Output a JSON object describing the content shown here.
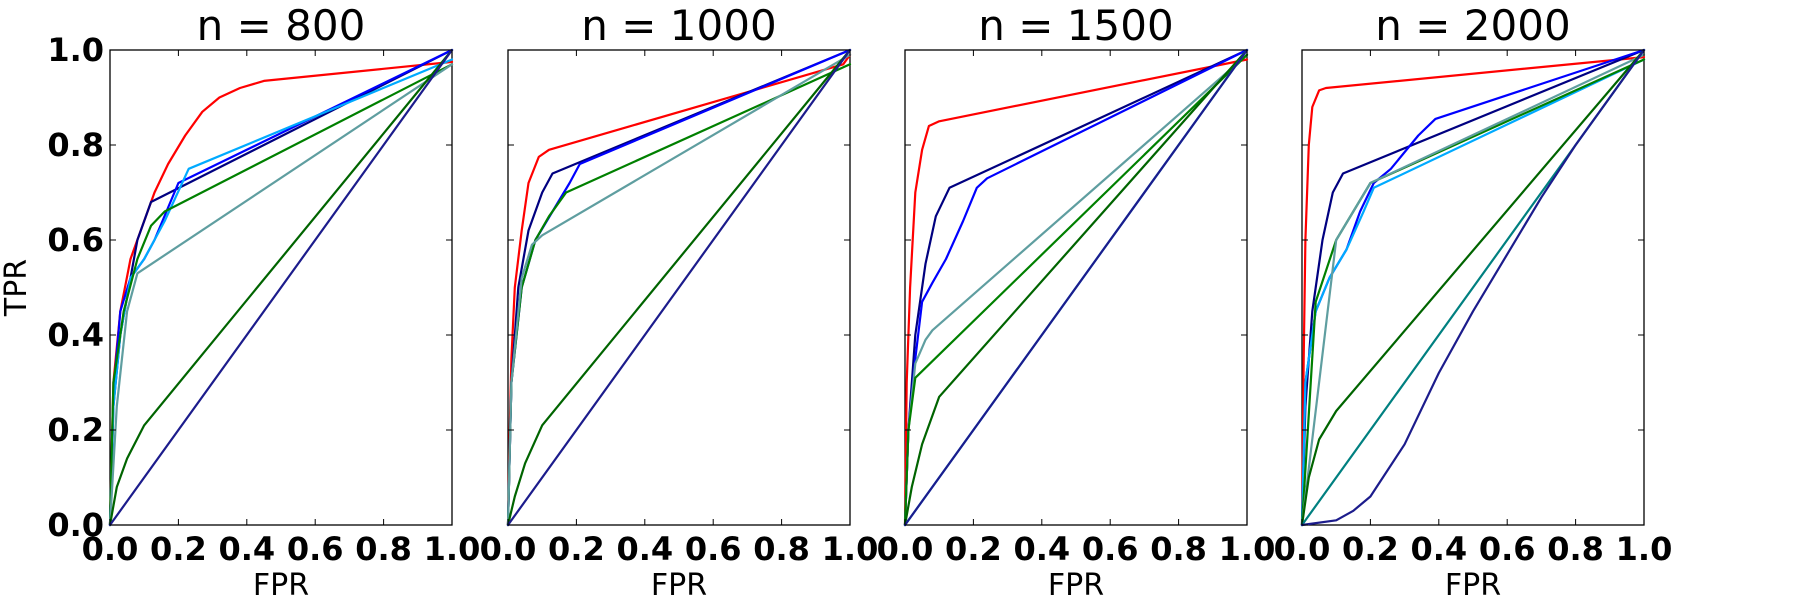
{
  "chart_data": [
    {
      "type": "line",
      "title": "n = 800",
      "xlabel": "FPR",
      "ylabel": "TPR",
      "xlim": [
        0,
        1
      ],
      "ylim": [
        0,
        1
      ],
      "xticks": [
        "0.0",
        "0.2",
        "0.4",
        "0.6",
        "0.8",
        "1.0"
      ],
      "yticks": [
        "0.0",
        "0.2",
        "0.4",
        "0.6",
        "0.8",
        "1.0"
      ],
      "grid": false,
      "series": [
        {
          "color": "#ff0000",
          "points": [
            [
              0,
              0
            ],
            [
              0.01,
              0.3
            ],
            [
              0.03,
              0.45
            ],
            [
              0.06,
              0.56
            ],
            [
              0.1,
              0.64
            ],
            [
              0.13,
              0.7
            ],
            [
              0.17,
              0.76
            ],
            [
              0.22,
              0.82
            ],
            [
              0.27,
              0.87
            ],
            [
              0.32,
              0.9
            ],
            [
              0.38,
              0.92
            ],
            [
              0.45,
              0.935
            ],
            [
              1,
              0.975
            ]
          ]
        },
        {
          "color": "#000080",
          "points": [
            [
              0,
              0
            ],
            [
              0.01,
              0.25
            ],
            [
              0.03,
              0.4
            ],
            [
              0.06,
              0.52
            ],
            [
              0.08,
              0.6
            ],
            [
              0.12,
              0.68
            ],
            [
              1,
              1
            ]
          ]
        },
        {
          "color": "#0000ff",
          "points": [
            [
              0,
              0
            ],
            [
              0.01,
              0.28
            ],
            [
              0.03,
              0.45
            ],
            [
              0.06,
              0.52
            ],
            [
              0.1,
              0.56
            ],
            [
              0.13,
              0.6
            ],
            [
              0.2,
              0.72
            ],
            [
              1,
              1
            ]
          ]
        },
        {
          "color": "#00aaff",
          "points": [
            [
              0,
              0
            ],
            [
              0.01,
              0.25
            ],
            [
              0.03,
              0.4
            ],
            [
              0.06,
              0.52
            ],
            [
              0.1,
              0.56
            ],
            [
              0.16,
              0.64
            ],
            [
              0.23,
              0.75
            ],
            [
              1,
              0.98
            ]
          ]
        },
        {
          "color": "#008000",
          "points": [
            [
              0,
              0
            ],
            [
              0.01,
              0.3
            ],
            [
              0.04,
              0.45
            ],
            [
              0.08,
              0.56
            ],
            [
              0.12,
              0.63
            ],
            [
              0.16,
              0.66
            ],
            [
              1,
              0.97
            ]
          ]
        },
        {
          "color": "#5f9ea0",
          "points": [
            [
              0,
              0
            ],
            [
              0.02,
              0.25
            ],
            [
              0.05,
              0.45
            ],
            [
              0.08,
              0.53
            ],
            [
              1,
              0.97
            ]
          ]
        },
        {
          "color": "#006400",
          "points": [
            [
              0,
              0
            ],
            [
              0.02,
              0.08
            ],
            [
              0.05,
              0.14
            ],
            [
              0.1,
              0.21
            ],
            [
              1,
              1
            ]
          ]
        },
        {
          "color": "#1c1c8c",
          "points": [
            [
              0,
              0
            ],
            [
              1,
              1
            ]
          ]
        }
      ]
    },
    {
      "type": "line",
      "title": "n = 1000",
      "xlabel": "FPR",
      "ylabel": "",
      "xlim": [
        0,
        1
      ],
      "ylim": [
        0,
        1
      ],
      "xticks": [
        "0.0",
        "0.2",
        "0.4",
        "0.6",
        "0.8",
        "1.0"
      ],
      "yticks": [],
      "grid": false,
      "series": [
        {
          "color": "#ff0000",
          "points": [
            [
              0,
              0
            ],
            [
              0.005,
              0.2
            ],
            [
              0.01,
              0.35
            ],
            [
              0.02,
              0.5
            ],
            [
              0.04,
              0.62
            ],
            [
              0.06,
              0.72
            ],
            [
              0.09,
              0.775
            ],
            [
              0.12,
              0.79
            ],
            [
              0.98,
              0.97
            ],
            [
              1,
              0.99
            ]
          ]
        },
        {
          "color": "#000080",
          "points": [
            [
              0,
              0
            ],
            [
              0.01,
              0.3
            ],
            [
              0.03,
              0.5
            ],
            [
              0.06,
              0.62
            ],
            [
              0.1,
              0.7
            ],
            [
              0.13,
              0.74
            ],
            [
              1,
              1
            ]
          ]
        },
        {
          "color": "#0000ff",
          "points": [
            [
              0,
              0
            ],
            [
              0.01,
              0.3
            ],
            [
              0.04,
              0.5
            ],
            [
              0.08,
              0.6
            ],
            [
              0.13,
              0.66
            ],
            [
              0.18,
              0.72
            ],
            [
              0.21,
              0.76
            ],
            [
              1,
              1
            ]
          ]
        },
        {
          "color": "#008000",
          "points": [
            [
              0,
              0
            ],
            [
              0.01,
              0.3
            ],
            [
              0.04,
              0.5
            ],
            [
              0.08,
              0.6
            ],
            [
              0.12,
              0.65
            ],
            [
              0.17,
              0.7
            ],
            [
              1,
              0.97
            ]
          ]
        },
        {
          "color": "#5f9ea0",
          "points": [
            [
              0,
              0
            ],
            [
              0.01,
              0.3
            ],
            [
              0.04,
              0.52
            ],
            [
              0.07,
              0.59
            ],
            [
              0.1,
              0.61
            ],
            [
              1,
              0.99
            ]
          ]
        },
        {
          "color": "#006400",
          "points": [
            [
              0,
              0
            ],
            [
              0.02,
              0.06
            ],
            [
              0.05,
              0.13
            ],
            [
              0.1,
              0.21
            ],
            [
              1,
              1
            ]
          ]
        },
        {
          "color": "#1c1c8c",
          "points": [
            [
              0,
              0
            ],
            [
              1,
              1
            ]
          ]
        }
      ]
    },
    {
      "type": "line",
      "title": "n = 1500",
      "xlabel": "FPR",
      "ylabel": "",
      "xlim": [
        0,
        1
      ],
      "ylim": [
        0,
        1
      ],
      "xticks": [
        "0.0",
        "0.2",
        "0.4",
        "0.6",
        "0.8",
        "1.0"
      ],
      "yticks": [],
      "grid": false,
      "series": [
        {
          "color": "#ff0000",
          "points": [
            [
              0,
              0
            ],
            [
              0.005,
              0.3
            ],
            [
              0.015,
              0.5
            ],
            [
              0.03,
              0.7
            ],
            [
              0.05,
              0.79
            ],
            [
              0.07,
              0.84
            ],
            [
              0.1,
              0.85
            ],
            [
              1,
              0.98
            ]
          ]
        },
        {
          "color": "#000080",
          "points": [
            [
              0,
              0
            ],
            [
              0.01,
              0.2
            ],
            [
              0.03,
              0.4
            ],
            [
              0.06,
              0.55
            ],
            [
              0.09,
              0.65
            ],
            [
              0.13,
              0.71
            ],
            [
              1,
              1
            ]
          ]
        },
        {
          "color": "#0000ff",
          "points": [
            [
              0,
              0
            ],
            [
              0.01,
              0.2
            ],
            [
              0.03,
              0.35
            ],
            [
              0.05,
              0.47
            ],
            [
              0.08,
              0.51
            ],
            [
              0.12,
              0.56
            ],
            [
              0.17,
              0.64
            ],
            [
              0.21,
              0.71
            ],
            [
              0.24,
              0.73
            ],
            [
              1,
              1
            ]
          ]
        },
        {
          "color": "#5f9ea0",
          "points": [
            [
              0,
              0
            ],
            [
              0.01,
              0.2
            ],
            [
              0.03,
              0.34
            ],
            [
              0.06,
              0.39
            ],
            [
              0.08,
              0.41
            ],
            [
              1,
              0.99
            ]
          ]
        },
        {
          "color": "#008000",
          "points": [
            [
              0,
              0
            ],
            [
              0.01,
              0.2
            ],
            [
              0.03,
              0.31
            ],
            [
              1,
              0.99
            ]
          ]
        },
        {
          "color": "#006400",
          "points": [
            [
              0,
              0
            ],
            [
              0.02,
              0.08
            ],
            [
              0.05,
              0.17
            ],
            [
              0.1,
              0.27
            ],
            [
              1,
              1
            ]
          ]
        },
        {
          "color": "#00aaff",
          "points": [
            [
              0,
              0
            ],
            [
              1,
              1
            ]
          ]
        },
        {
          "color": "#1c1c8c",
          "points": [
            [
              0,
              0
            ],
            [
              1,
              1
            ]
          ]
        }
      ]
    },
    {
      "type": "line",
      "title": "n = 2000",
      "xlabel": "FPR",
      "ylabel": "",
      "xlim": [
        0,
        1
      ],
      "ylim": [
        0,
        1
      ],
      "xticks": [
        "0.0",
        "0.2",
        "0.4",
        "0.6",
        "0.8",
        "1.0"
      ],
      "yticks": [],
      "grid": false,
      "series": [
        {
          "color": "#ff0000",
          "points": [
            [
              0,
              0
            ],
            [
              0.005,
              0.35
            ],
            [
              0.01,
              0.6
            ],
            [
              0.02,
              0.8
            ],
            [
              0.03,
              0.88
            ],
            [
              0.05,
              0.915
            ],
            [
              0.07,
              0.92
            ],
            [
              1,
              0.985
            ]
          ]
        },
        {
          "color": "#000080",
          "points": [
            [
              0,
              0
            ],
            [
              0.01,
              0.25
            ],
            [
              0.03,
              0.45
            ],
            [
              0.06,
              0.6
            ],
            [
              0.09,
              0.7
            ],
            [
              0.12,
              0.74
            ],
            [
              1,
              1
            ]
          ]
        },
        {
          "color": "#0000ff",
          "points": [
            [
              0,
              0
            ],
            [
              0.01,
              0.3
            ],
            [
              0.04,
              0.45
            ],
            [
              0.08,
              0.52
            ],
            [
              0.13,
              0.58
            ],
            [
              0.17,
              0.66
            ],
            [
              0.21,
              0.72
            ],
            [
              0.26,
              0.75
            ],
            [
              0.34,
              0.82
            ],
            [
              0.39,
              0.855
            ],
            [
              1,
              1
            ]
          ]
        },
        {
          "color": "#00aaff",
          "points": [
            [
              0,
              0
            ],
            [
              0.01,
              0.3
            ],
            [
              0.04,
              0.45
            ],
            [
              0.08,
              0.52
            ],
            [
              0.13,
              0.58
            ],
            [
              0.18,
              0.66
            ],
            [
              0.21,
              0.71
            ],
            [
              1,
              0.98
            ]
          ]
        },
        {
          "color": "#008000",
          "points": [
            [
              0,
              0
            ],
            [
              0.04,
              0.47
            ],
            [
              0.1,
              0.6
            ],
            [
              0.2,
              0.72
            ],
            [
              1,
              0.98
            ]
          ]
        },
        {
          "color": "#5f9ea0",
          "points": [
            [
              0,
              0
            ],
            [
              0.1,
              0.6
            ],
            [
              0.2,
              0.72
            ],
            [
              1,
              0.99
            ]
          ]
        },
        {
          "color": "#006400",
          "points": [
            [
              0,
              0
            ],
            [
              0.02,
              0.1
            ],
            [
              0.05,
              0.18
            ],
            [
              0.1,
              0.24
            ],
            [
              1,
              1
            ]
          ]
        },
        {
          "color": "#008080",
          "points": [
            [
              0,
              0
            ],
            [
              1,
              1
            ]
          ]
        },
        {
          "color": "#1c1c8c",
          "points": [
            [
              0,
              0
            ],
            [
              0.1,
              0.01
            ],
            [
              0.15,
              0.03
            ],
            [
              0.2,
              0.06
            ],
            [
              0.3,
              0.17
            ],
            [
              0.4,
              0.32
            ],
            [
              0.5,
              0.45
            ],
            [
              0.6,
              0.57
            ],
            [
              0.7,
              0.69
            ],
            [
              0.8,
              0.8
            ],
            [
              0.9,
              0.9
            ],
            [
              1,
              1
            ]
          ]
        }
      ]
    }
  ]
}
